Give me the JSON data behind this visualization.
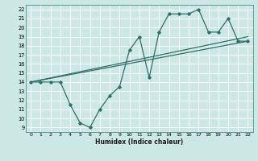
{
  "xlabel": "Humidex (Indice chaleur)",
  "xlim": [
    -0.5,
    22.5
  ],
  "ylim": [
    8.5,
    22.5
  ],
  "yticks": [
    9,
    10,
    11,
    12,
    13,
    14,
    15,
    16,
    17,
    18,
    19,
    20,
    21,
    22
  ],
  "xticks": [
    0,
    1,
    2,
    3,
    4,
    5,
    6,
    7,
    8,
    9,
    10,
    11,
    12,
    13,
    14,
    15,
    16,
    17,
    18,
    19,
    20,
    21,
    22
  ],
  "bg_color": "#cce8e4",
  "line_color": "#2d7068",
  "grid_color": "#ffffff",
  "line1_x": [
    0,
    1,
    2,
    3,
    4,
    5,
    6,
    7,
    8,
    9,
    10,
    11,
    12,
    13,
    14,
    15,
    16,
    17,
    18,
    19,
    20,
    21,
    22
  ],
  "line1_y": [
    14,
    14,
    14,
    14,
    11.5,
    9.5,
    9,
    11,
    12.5,
    13.5,
    17.5,
    19,
    14.5,
    19.5,
    21.5,
    21.5,
    21.5,
    22,
    19.5,
    19.5,
    21,
    18.5,
    18.5
  ],
  "line2_x": [
    0,
    22
  ],
  "line2_y": [
    14,
    19.0
  ],
  "line3_x": [
    0,
    22
  ],
  "line3_y": [
    14,
    18.5
  ]
}
